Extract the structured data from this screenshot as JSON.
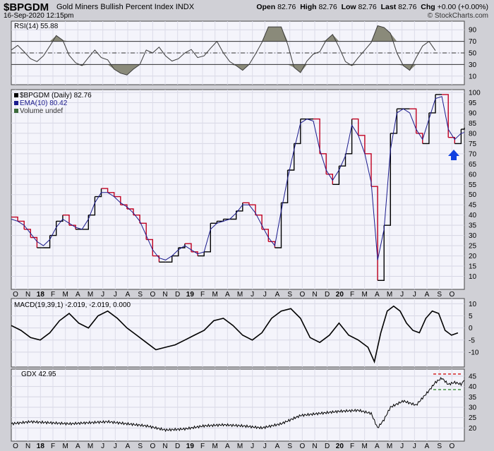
{
  "header": {
    "symbol": "$BPGDM",
    "name": "Gold Miners Bullish Percent Index",
    "exchange": "INDX",
    "datetime": "16-Sep-2020 12:15pm",
    "open_label": "Open",
    "open": "82.76",
    "high_label": "High",
    "high": "82.76",
    "low_label": "Low",
    "low": "82.76",
    "last_label": "Last",
    "last": "82.76",
    "chg_label": "Chg",
    "chg": "+0.00 (+0.00%)",
    "watermark": "© StockCharts.com"
  },
  "colors": {
    "background": "#f4f4fb",
    "price": "#000000",
    "ema": "#1a1a8c",
    "down": "#c00020",
    "rsi_fill": "#8a8a7a",
    "arrow": "#1040e0"
  },
  "x_axis_labels": [
    "O",
    "N",
    "18",
    "F",
    "M",
    "A",
    "M",
    "J",
    "J",
    "A",
    "S",
    "O",
    "N",
    "D",
    "19",
    "F",
    "M",
    "A",
    "M",
    "J",
    "J",
    "A",
    "S",
    "O",
    "N",
    "D",
    "20",
    "F",
    "M",
    "A",
    "M",
    "J",
    "J",
    "A",
    "S",
    "O"
  ],
  "chart_data": [
    {
      "panel": "rsi",
      "type": "line",
      "title": "RSI(14) 55.88",
      "ylim": [
        0,
        100
      ],
      "reference_lines": [
        30,
        50,
        70
      ],
      "y_ticks": [
        10,
        30,
        50,
        70,
        90
      ],
      "points": [
        [
          0,
          55
        ],
        [
          2,
          63
        ],
        [
          4,
          52
        ],
        [
          6,
          40
        ],
        [
          8,
          35
        ],
        [
          10,
          45
        ],
        [
          12,
          62
        ],
        [
          14,
          80
        ],
        [
          16,
          72
        ],
        [
          18,
          46
        ],
        [
          20,
          33
        ],
        [
          22,
          28
        ],
        [
          24,
          42
        ],
        [
          26,
          55
        ],
        [
          28,
          42
        ],
        [
          30,
          38
        ],
        [
          32,
          22
        ],
        [
          34,
          15
        ],
        [
          36,
          12
        ],
        [
          38,
          22
        ],
        [
          40,
          30
        ],
        [
          42,
          55
        ],
        [
          44,
          50
        ],
        [
          46,
          60
        ],
        [
          48,
          45
        ],
        [
          50,
          36
        ],
        [
          52,
          40
        ],
        [
          54,
          50
        ],
        [
          56,
          56
        ],
        [
          58,
          42
        ],
        [
          60,
          45
        ],
        [
          62,
          58
        ],
        [
          64,
          70
        ],
        [
          66,
          50
        ],
        [
          68,
          35
        ],
        [
          70,
          28
        ],
        [
          72,
          20
        ],
        [
          74,
          30
        ],
        [
          76,
          48
        ],
        [
          78,
          68
        ],
        [
          80,
          95
        ],
        [
          82,
          95
        ],
        [
          84,
          95
        ],
        [
          86,
          65
        ],
        [
          88,
          25
        ],
        [
          90,
          16
        ],
        [
          92,
          36
        ],
        [
          94,
          48
        ],
        [
          96,
          52
        ],
        [
          98,
          72
        ],
        [
          100,
          82
        ],
        [
          102,
          60
        ],
        [
          104,
          35
        ],
        [
          106,
          28
        ],
        [
          108,
          42
        ],
        [
          110,
          55
        ],
        [
          112,
          68
        ],
        [
          114,
          97
        ],
        [
          116,
          94
        ],
        [
          118,
          84
        ],
        [
          120,
          50
        ],
        [
          122,
          28
        ],
        [
          124,
          20
        ],
        [
          126,
          42
        ],
        [
          128,
          62
        ],
        [
          130,
          70
        ],
        [
          132,
          54
        ]
      ]
    },
    {
      "panel": "price",
      "type": "line",
      "title": "$BPGDM (Daily) 82.76",
      "legend": [
        "$BPGDM (Daily) 82.76",
        "EMA(10) 80.42",
        "Volume undef"
      ],
      "ylim": [
        5,
        100
      ],
      "y_ticks": [
        10,
        15,
        20,
        25,
        30,
        35,
        40,
        45,
        50,
        55,
        60,
        65,
        70,
        75,
        80,
        85,
        90,
        95,
        100
      ],
      "series": [
        {
          "name": "$BPGDM",
          "points": [
            [
              0,
              39
            ],
            [
              2,
              37
            ],
            [
              4,
              33
            ],
            [
              6,
              29
            ],
            [
              8,
              24
            ],
            [
              10,
              24
            ],
            [
              12,
              30
            ],
            [
              14,
              37
            ],
            [
              16,
              40
            ],
            [
              18,
              35
            ],
            [
              20,
              33
            ],
            [
              22,
              33
            ],
            [
              24,
              40
            ],
            [
              26,
              49
            ],
            [
              28,
              53
            ],
            [
              30,
              51
            ],
            [
              32,
              49
            ],
            [
              34,
              45
            ],
            [
              36,
              43
            ],
            [
              38,
              40
            ],
            [
              40,
              36
            ],
            [
              42,
              28
            ],
            [
              44,
              20
            ],
            [
              46,
              17
            ],
            [
              48,
              17
            ],
            [
              50,
              20
            ],
            [
              52,
              24
            ],
            [
              54,
              26
            ],
            [
              56,
              22
            ],
            [
              58,
              20
            ],
            [
              60,
              22
            ],
            [
              62,
              36
            ],
            [
              64,
              37
            ],
            [
              66,
              38
            ],
            [
              68,
              38
            ],
            [
              70,
              42
            ],
            [
              72,
              46
            ],
            [
              74,
              45
            ],
            [
              76,
              40
            ],
            [
              78,
              33
            ],
            [
              80,
              27
            ],
            [
              82,
              24
            ],
            [
              84,
              46
            ],
            [
              86,
              62
            ],
            [
              88,
              75
            ],
            [
              90,
              87
            ],
            [
              92,
              87
            ],
            [
              94,
              87
            ],
            [
              96,
              70
            ],
            [
              98,
              60
            ],
            [
              100,
              55
            ],
            [
              102,
              64
            ],
            [
              104,
              70
            ],
            [
              106,
              87
            ],
            [
              108,
              79
            ],
            [
              110,
              70
            ],
            [
              112,
              54
            ],
            [
              114,
              8
            ],
            [
              116,
              35
            ],
            [
              118,
              80
            ],
            [
              120,
              92
            ],
            [
              122,
              92
            ],
            [
              124,
              92
            ],
            [
              126,
              80
            ],
            [
              128,
              75
            ],
            [
              130,
              90
            ],
            [
              132,
              99
            ],
            [
              134,
              99
            ],
            [
              136,
              78
            ],
            [
              138,
              75
            ],
            [
              140,
              82
            ],
            [
              141,
              82.76
            ]
          ]
        },
        {
          "name": "EMA(10)",
          "points": [
            [
              0,
              38
            ],
            [
              2,
              37
            ],
            [
              4,
              35
            ],
            [
              6,
              31
            ],
            [
              8,
              27
            ],
            [
              10,
              25
            ],
            [
              12,
              28
            ],
            [
              14,
              34
            ],
            [
              16,
              38
            ],
            [
              18,
              36
            ],
            [
              20,
              34
            ],
            [
              22,
              33
            ],
            [
              24,
              38
            ],
            [
              26,
              46
            ],
            [
              28,
              51
            ],
            [
              30,
              51
            ],
            [
              32,
              49
            ],
            [
              34,
              46
            ],
            [
              36,
              44
            ],
            [
              38,
              41
            ],
            [
              40,
              37
            ],
            [
              42,
              30
            ],
            [
              44,
              23
            ],
            [
              46,
              19
            ],
            [
              48,
              18
            ],
            [
              50,
              20
            ],
            [
              52,
              23
            ],
            [
              54,
              25
            ],
            [
              56,
              23
            ],
            [
              58,
              21
            ],
            [
              60,
              22
            ],
            [
              62,
              33
            ],
            [
              64,
              36
            ],
            [
              66,
              37
            ],
            [
              68,
              38
            ],
            [
              70,
              41
            ],
            [
              72,
              45
            ],
            [
              74,
              45
            ],
            [
              76,
              41
            ],
            [
              78,
              35
            ],
            [
              80,
              29
            ],
            [
              82,
              25
            ],
            [
              84,
              42
            ],
            [
              86,
              58
            ],
            [
              88,
              72
            ],
            [
              90,
              85
            ],
            [
              92,
              87
            ],
            [
              94,
              86
            ],
            [
              96,
              72
            ],
            [
              98,
              62
            ],
            [
              100,
              57
            ],
            [
              102,
              62
            ],
            [
              104,
              69
            ],
            [
              106,
              84
            ],
            [
              108,
              79
            ],
            [
              110,
              70
            ],
            [
              112,
              56
            ],
            [
              114,
              18
            ],
            [
              116,
              33
            ],
            [
              118,
              72
            ],
            [
              120,
              90
            ],
            [
              122,
              92
            ],
            [
              124,
              90
            ],
            [
              126,
              82
            ],
            [
              128,
              77
            ],
            [
              130,
              87
            ],
            [
              132,
              97
            ],
            [
              134,
              98
            ],
            [
              136,
              82
            ],
            [
              138,
              77
            ],
            [
              140,
              80
            ],
            [
              141,
              80.42
            ]
          ]
        }
      ],
      "annotation": "blue up arrow at latest bar"
    },
    {
      "panel": "macd",
      "type": "line",
      "title": "MACD(19,39,1) -2.019, -2.019, 0.000",
      "ylim": [
        -15,
        11
      ],
      "y_ticks": [
        -10,
        -5,
        0,
        5,
        10
      ],
      "points": [
        [
          0,
          1
        ],
        [
          3,
          -1
        ],
        [
          6,
          -4
        ],
        [
          9,
          -5
        ],
        [
          12,
          -2
        ],
        [
          15,
          3
        ],
        [
          18,
          6
        ],
        [
          21,
          2
        ],
        [
          24,
          0
        ],
        [
          27,
          5
        ],
        [
          30,
          7
        ],
        [
          33,
          4
        ],
        [
          36,
          0
        ],
        [
          39,
          -3
        ],
        [
          42,
          -6
        ],
        [
          45,
          -9
        ],
        [
          48,
          -8
        ],
        [
          51,
          -7
        ],
        [
          54,
          -5
        ],
        [
          57,
          -3
        ],
        [
          60,
          -1
        ],
        [
          63,
          3
        ],
        [
          66,
          4
        ],
        [
          69,
          1
        ],
        [
          72,
          -3
        ],
        [
          75,
          -5
        ],
        [
          78,
          -2
        ],
        [
          81,
          4
        ],
        [
          84,
          7
        ],
        [
          87,
          8
        ],
        [
          90,
          4
        ],
        [
          93,
          -4
        ],
        [
          96,
          -6
        ],
        [
          99,
          -3
        ],
        [
          102,
          2
        ],
        [
          105,
          -3
        ],
        [
          108,
          -5
        ],
        [
          111,
          -8
        ],
        [
          113,
          -14
        ],
        [
          115,
          -2
        ],
        [
          117,
          7
        ],
        [
          119,
          9
        ],
        [
          121,
          7
        ],
        [
          123,
          2
        ],
        [
          125,
          -1
        ],
        [
          127,
          -2
        ],
        [
          129,
          4
        ],
        [
          131,
          7
        ],
        [
          133,
          6
        ],
        [
          135,
          -1
        ],
        [
          137,
          -3
        ],
        [
          139,
          -2.019
        ]
      ]
    },
    {
      "panel": "gdx",
      "type": "line",
      "title": "GDX 42.95",
      "ylim": [
        15,
        47
      ],
      "y_ticks": [
        20,
        25,
        30,
        35,
        40,
        45
      ],
      "reference_lines": [
        46,
        38.5
      ],
      "points": [
        [
          0,
          22
        ],
        [
          6,
          23
        ],
        [
          12,
          22.5
        ],
        [
          18,
          22
        ],
        [
          24,
          22.5
        ],
        [
          30,
          23
        ],
        [
          36,
          22
        ],
        [
          42,
          21
        ],
        [
          48,
          19
        ],
        [
          54,
          19.5
        ],
        [
          60,
          21
        ],
        [
          66,
          21.5
        ],
        [
          72,
          21
        ],
        [
          78,
          20
        ],
        [
          84,
          22
        ],
        [
          90,
          26
        ],
        [
          96,
          27
        ],
        [
          102,
          28
        ],
        [
          108,
          28.5
        ],
        [
          112,
          27
        ],
        [
          114,
          20
        ],
        [
          116,
          24
        ],
        [
          118,
          30
        ],
        [
          122,
          33
        ],
        [
          126,
          31
        ],
        [
          130,
          38
        ],
        [
          132,
          42
        ],
        [
          134,
          44
        ],
        [
          136,
          41
        ],
        [
          138,
          42
        ],
        [
          140,
          41
        ],
        [
          141,
          42.95
        ]
      ]
    }
  ]
}
